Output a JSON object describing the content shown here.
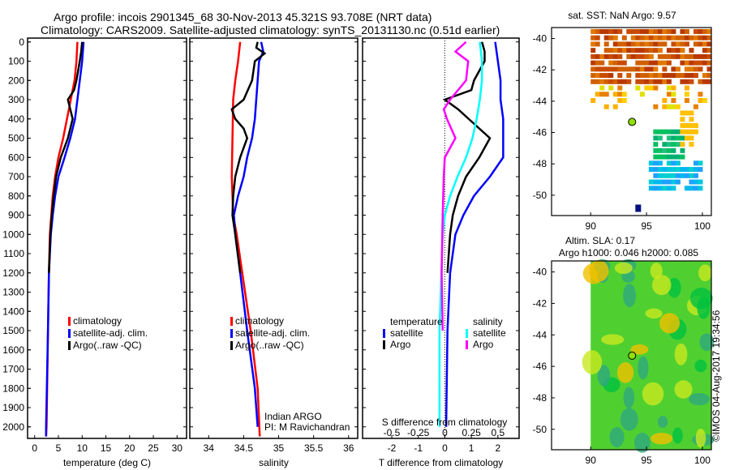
{
  "title": {
    "line1": "Argo profile: incois 2901345_68 30-Nov-2013 45.321S 93.708E (NRT data)",
    "line2": "Climatology: CARS2009. Satellite-adjusted climatology: synTS_20131130.nc (0.51d earlier)"
  },
  "credit": "©IMOS 04-Aug-2017 19:34:56",
  "colors": {
    "climatology": "#ff0000",
    "satellite": "#0000ff",
    "argo": "#000000",
    "s_satellite": "#00ffff",
    "s_argo": "#ff00ff"
  },
  "chart_data": [
    {
      "type": "line",
      "name": "temperature",
      "xlabel": "temperature (deg C)",
      "xlim": [
        -1.5,
        32
      ],
      "ylim": [
        2060,
        -20
      ],
      "xticks": [
        "0",
        "5",
        "10",
        "15",
        "20",
        "25",
        "30"
      ],
      "yticks": [
        "0",
        "100",
        "200",
        "300",
        "400",
        "500",
        "600",
        "700",
        "800",
        "900",
        "1000",
        "1100",
        "1200",
        "1300",
        "1400",
        "1500",
        "1600",
        "1700",
        "1800",
        "1900",
        "2000"
      ],
      "legend": [
        "climatology",
        "satellite-adj. clim.",
        "Argo(..raw -QC)"
      ],
      "series": [
        {
          "name": "climatology",
          "depth": [
            0,
            100,
            200,
            300,
            400,
            500,
            600,
            700,
            800,
            900,
            1000,
            1200,
            1500,
            2000,
            2050
          ],
          "values": [
            9,
            8.8,
            8.4,
            7.6,
            6.8,
            6,
            5,
            4.3,
            3.8,
            3.5,
            3.2,
            3,
            2.8,
            2.5,
            2.4
          ]
        },
        {
          "name": "satellite-adj. clim.",
          "depth": [
            0,
            100,
            200,
            300,
            400,
            500,
            600,
            700,
            800,
            900,
            1000,
            1200,
            1500,
            2000,
            2050
          ],
          "values": [
            10.3,
            10,
            9.5,
            9,
            8.5,
            7.5,
            6.3,
            5,
            4.3,
            3.8,
            3.4,
            3,
            2.8,
            2.4,
            2.4
          ]
        },
        {
          "name": "Argo(..raw -QC)",
          "depth": [
            0,
            50,
            100,
            200,
            250,
            300,
            350,
            400,
            500,
            600,
            700,
            800,
            900,
            1000,
            1200
          ],
          "values": [
            10,
            9.8,
            9.5,
            8.8,
            8.3,
            7,
            7.5,
            8,
            7,
            5.5,
            4.5,
            4,
            3.6,
            3.3,
            3
          ]
        }
      ]
    },
    {
      "type": "line",
      "name": "salinity",
      "xlabel": "salinity",
      "xlim": [
        33.73,
        36.13
      ],
      "ylim": [
        2060,
        -20
      ],
      "xticks": [
        "34",
        "34.5",
        "35",
        "35.5",
        "36"
      ],
      "legend": [
        "climatology",
        "satellite-adj. clim.",
        "Argo(..raw -QC)"
      ],
      "annotation": [
        "Indian ARGO",
        "PI: M Ravichandran"
      ],
      "series": [
        {
          "name": "climatology",
          "depth": [
            0,
            100,
            200,
            300,
            500,
            700,
            900,
            1000,
            1200,
            1500,
            1800,
            2050
          ],
          "values": [
            34.45,
            34.42,
            34.38,
            34.35,
            34.34,
            34.33,
            34.35,
            34.4,
            34.48,
            34.6,
            34.7,
            34.73
          ]
        },
        {
          "name": "satellite-adj. clim.",
          "depth": [
            0,
            50,
            100,
            200,
            300,
            400,
            500,
            600,
            700,
            800,
            900,
            1000,
            1200,
            1500,
            1800,
            2000
          ],
          "values": [
            34.75,
            34.78,
            34.72,
            34.7,
            34.68,
            34.66,
            34.62,
            34.55,
            34.5,
            34.42,
            34.36,
            34.38,
            34.45,
            34.55,
            34.66,
            34.7
          ]
        },
        {
          "name": "Argo(..raw -QC)",
          "depth": [
            0,
            30,
            60,
            100,
            200,
            300,
            350,
            400,
            450,
            500,
            600,
            700,
            800,
            900,
            1000,
            1200
          ],
          "values": [
            34.7,
            34.68,
            34.8,
            34.66,
            34.62,
            34.5,
            34.33,
            34.38,
            34.5,
            34.55,
            34.45,
            34.38,
            34.35,
            34.34,
            34.38,
            34.45
          ]
        }
      ]
    },
    {
      "type": "line",
      "name": "difference",
      "xlabel": "T difference from climatology",
      "x2label": "S difference from climatology",
      "xlim": [
        -3.1,
        2.8
      ],
      "ylim": [
        2060,
        -20
      ],
      "xticks": [
        "-2",
        "-1",
        "0",
        "1",
        "2"
      ],
      "x2ticks": [
        "-0.5",
        "-0.25",
        "0",
        "0.25",
        "0.5"
      ],
      "legend_titles": [
        "temperature",
        "salinity"
      ],
      "legend": [
        "satellite",
        "Argo",
        "satellite",
        "Argo"
      ],
      "series": [
        {
          "name": "T satellite",
          "depth": [
            0,
            100,
            200,
            300,
            400,
            500,
            600,
            700,
            800,
            900,
            1000,
            1200,
            1500,
            2000
          ],
          "values": [
            1.9,
            2,
            2.1,
            2.1,
            2.2,
            2.2,
            2.2,
            1.7,
            1.1,
            0.7,
            0.4,
            0.2,
            0.1,
            0.05
          ]
        },
        {
          "name": "T Argo",
          "depth": [
            0,
            50,
            100,
            200,
            250,
            300,
            350,
            400,
            500,
            600,
            700,
            800,
            900,
            1000,
            1200
          ],
          "values": [
            1.4,
            1.5,
            1.5,
            1.1,
            1,
            0,
            0.5,
            0.9,
            1.7,
            1.3,
            0.8,
            0.5,
            0.3,
            0.2,
            0.1
          ]
        },
        {
          "name": "S satellite",
          "depth": [
            0,
            100,
            200,
            300,
            400,
            500,
            600,
            700,
            800,
            900,
            1000,
            1500,
            2000
          ],
          "values": [
            0.33,
            0.35,
            0.35,
            0.33,
            0.3,
            0.26,
            0.2,
            0.12,
            0.05,
            0,
            -0.02,
            -0.05,
            -0.05
          ]
        },
        {
          "name": "S Argo",
          "depth": [
            0,
            50,
            100,
            200,
            300,
            350,
            400,
            500,
            600,
            700,
            900,
            1200,
            1500
          ],
          "values": [
            0.2,
            0.1,
            0.22,
            0.2,
            0.05,
            -0.01,
            0.02,
            0.1,
            0,
            -0.01,
            -0.02,
            -0.03,
            -0.02
          ]
        }
      ]
    },
    {
      "type": "heatmap",
      "name": "sst-map",
      "title": "sat. SST: NaN Argo: 9.57",
      "xticks": [
        "90",
        "95",
        "100"
      ],
      "yticks": [
        "-40",
        "-42",
        "-44",
        "-46",
        "-48",
        "-50"
      ],
      "xlim": [
        86.5,
        100.8
      ],
      "ylim": [
        -51.3,
        -39.3
      ],
      "argo_position": [
        93.708,
        -45.321
      ]
    },
    {
      "type": "heatmap",
      "name": "sla-map",
      "title": "Altim. SLA: 0.17",
      "subtitle": "Argo h1000: 0.046 h2000: 0.085",
      "xticks": [
        "90",
        "95",
        "100"
      ],
      "yticks": [
        "-40",
        "-42",
        "-44",
        "-46",
        "-48",
        "-50"
      ],
      "xlim": [
        86.5,
        100.8
      ],
      "ylim": [
        -51.3,
        -39.3
      ],
      "argo_position": [
        93.708,
        -45.321
      ]
    }
  ]
}
